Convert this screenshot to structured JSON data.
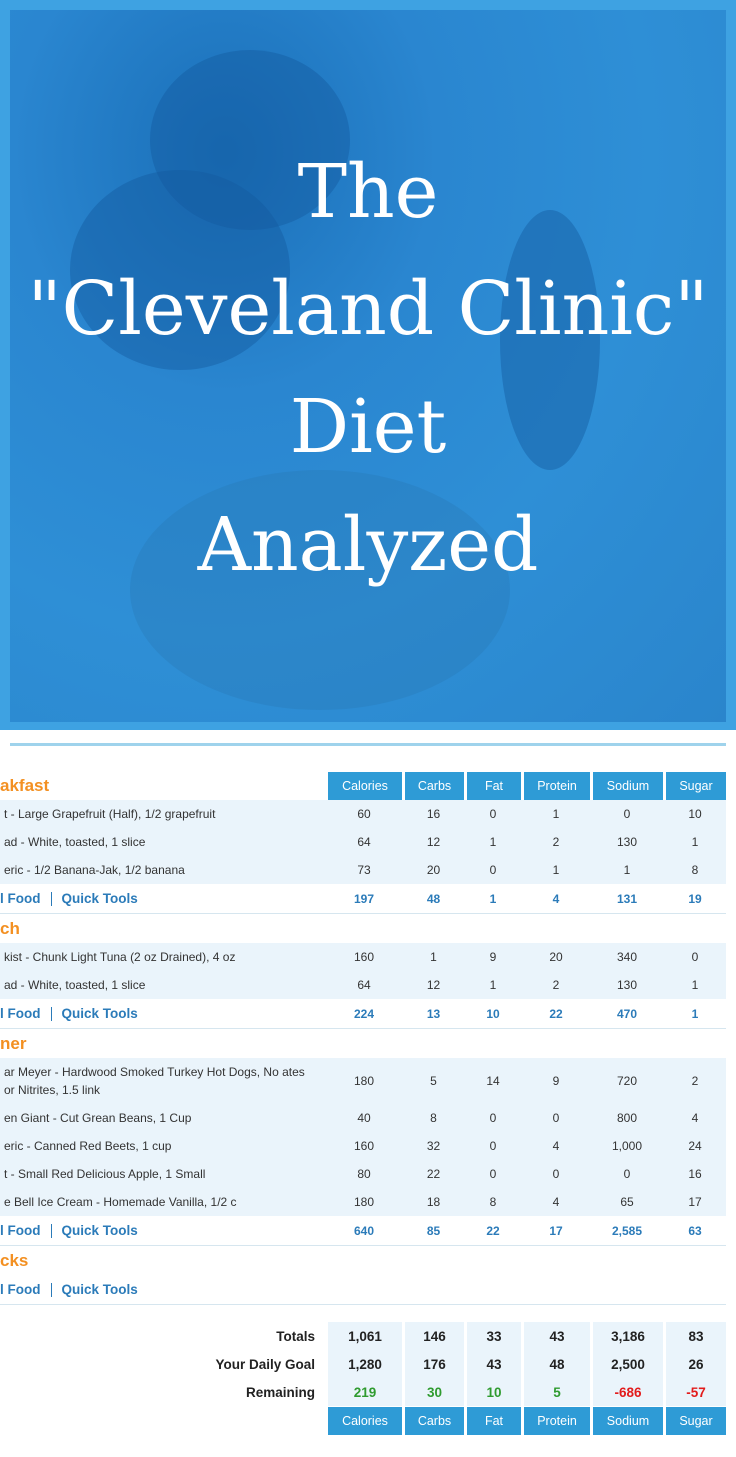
{
  "hero": {
    "title_lines": [
      "The",
      "\"Cleveland Clinic\"",
      "Diet",
      "Analyzed"
    ]
  },
  "diary": {
    "columns": [
      "Calories",
      "Carbs",
      "Fat",
      "Protein",
      "Sodium",
      "Sugar"
    ],
    "meals": [
      {
        "name": "akfast",
        "rows": [
          {
            "food": "t - Large Grapefruit (Half), 1/2 grapefruit",
            "values": [
              "60",
              "16",
              "0",
              "1",
              "0",
              "10"
            ]
          },
          {
            "food": "ad - White, toasted, 1 slice",
            "values": [
              "64",
              "12",
              "1",
              "2",
              "130",
              "1"
            ]
          },
          {
            "food": "eric - 1/2 Banana-Jak, 1/2 banana",
            "values": [
              "73",
              "20",
              "0",
              "1",
              "1",
              "8"
            ]
          }
        ],
        "total": {
          "add_food": "l Food",
          "quick_tools": "Quick Tools",
          "values": [
            "197",
            "48",
            "1",
            "4",
            "131",
            "19"
          ]
        }
      },
      {
        "name": "ch",
        "rows": [
          {
            "food": "kist - Chunk Light Tuna (2 oz Drained), 4 oz",
            "values": [
              "160",
              "1",
              "9",
              "20",
              "340",
              "0"
            ]
          },
          {
            "food": "ad - White, toasted, 1 slice",
            "values": [
              "64",
              "12",
              "1",
              "2",
              "130",
              "1"
            ]
          }
        ],
        "total": {
          "add_food": "l Food",
          "quick_tools": "Quick Tools",
          "values": [
            "224",
            "13",
            "10",
            "22",
            "470",
            "1"
          ]
        }
      },
      {
        "name": "ner",
        "rows": [
          {
            "food": "ar Meyer - Hardwood Smoked Turkey Hot Dogs, No ates or Nitrites, 1.5 link",
            "values": [
              "180",
              "5",
              "14",
              "9",
              "720",
              "2"
            ]
          },
          {
            "food": "en Giant - Cut Grean Beans, 1 Cup",
            "values": [
              "40",
              "8",
              "0",
              "0",
              "800",
              "4"
            ]
          },
          {
            "food": "eric - Canned Red Beets, 1 cup",
            "values": [
              "160",
              "32",
              "0",
              "4",
              "1,000",
              "24"
            ]
          },
          {
            "food": "t - Small Red Delicious Apple, 1 Small",
            "values": [
              "80",
              "22",
              "0",
              "0",
              "0",
              "16"
            ]
          },
          {
            "food": "e Bell Ice Cream - Homemade Vanilla, 1/2 c",
            "values": [
              "180",
              "18",
              "8",
              "4",
              "65",
              "17"
            ]
          }
        ],
        "total": {
          "add_food": "l Food",
          "quick_tools": "Quick Tools",
          "values": [
            "640",
            "85",
            "22",
            "17",
            "2,585",
            "63"
          ]
        }
      },
      {
        "name": "cks",
        "rows": [],
        "total": {
          "add_food": "l Food",
          "quick_tools": "Quick Tools",
          "values": []
        }
      }
    ],
    "summary": [
      {
        "label": "Totals",
        "values": [
          "1,061",
          "146",
          "33",
          "43",
          "3,186",
          "83"
        ]
      },
      {
        "label": "Your Daily Goal",
        "values": [
          "1,280",
          "176",
          "43",
          "48",
          "2,500",
          "26"
        ]
      },
      {
        "label": "Remaining",
        "values": [
          "219",
          "30",
          "10",
          "5",
          "-686",
          "-57"
        ]
      }
    ]
  }
}
